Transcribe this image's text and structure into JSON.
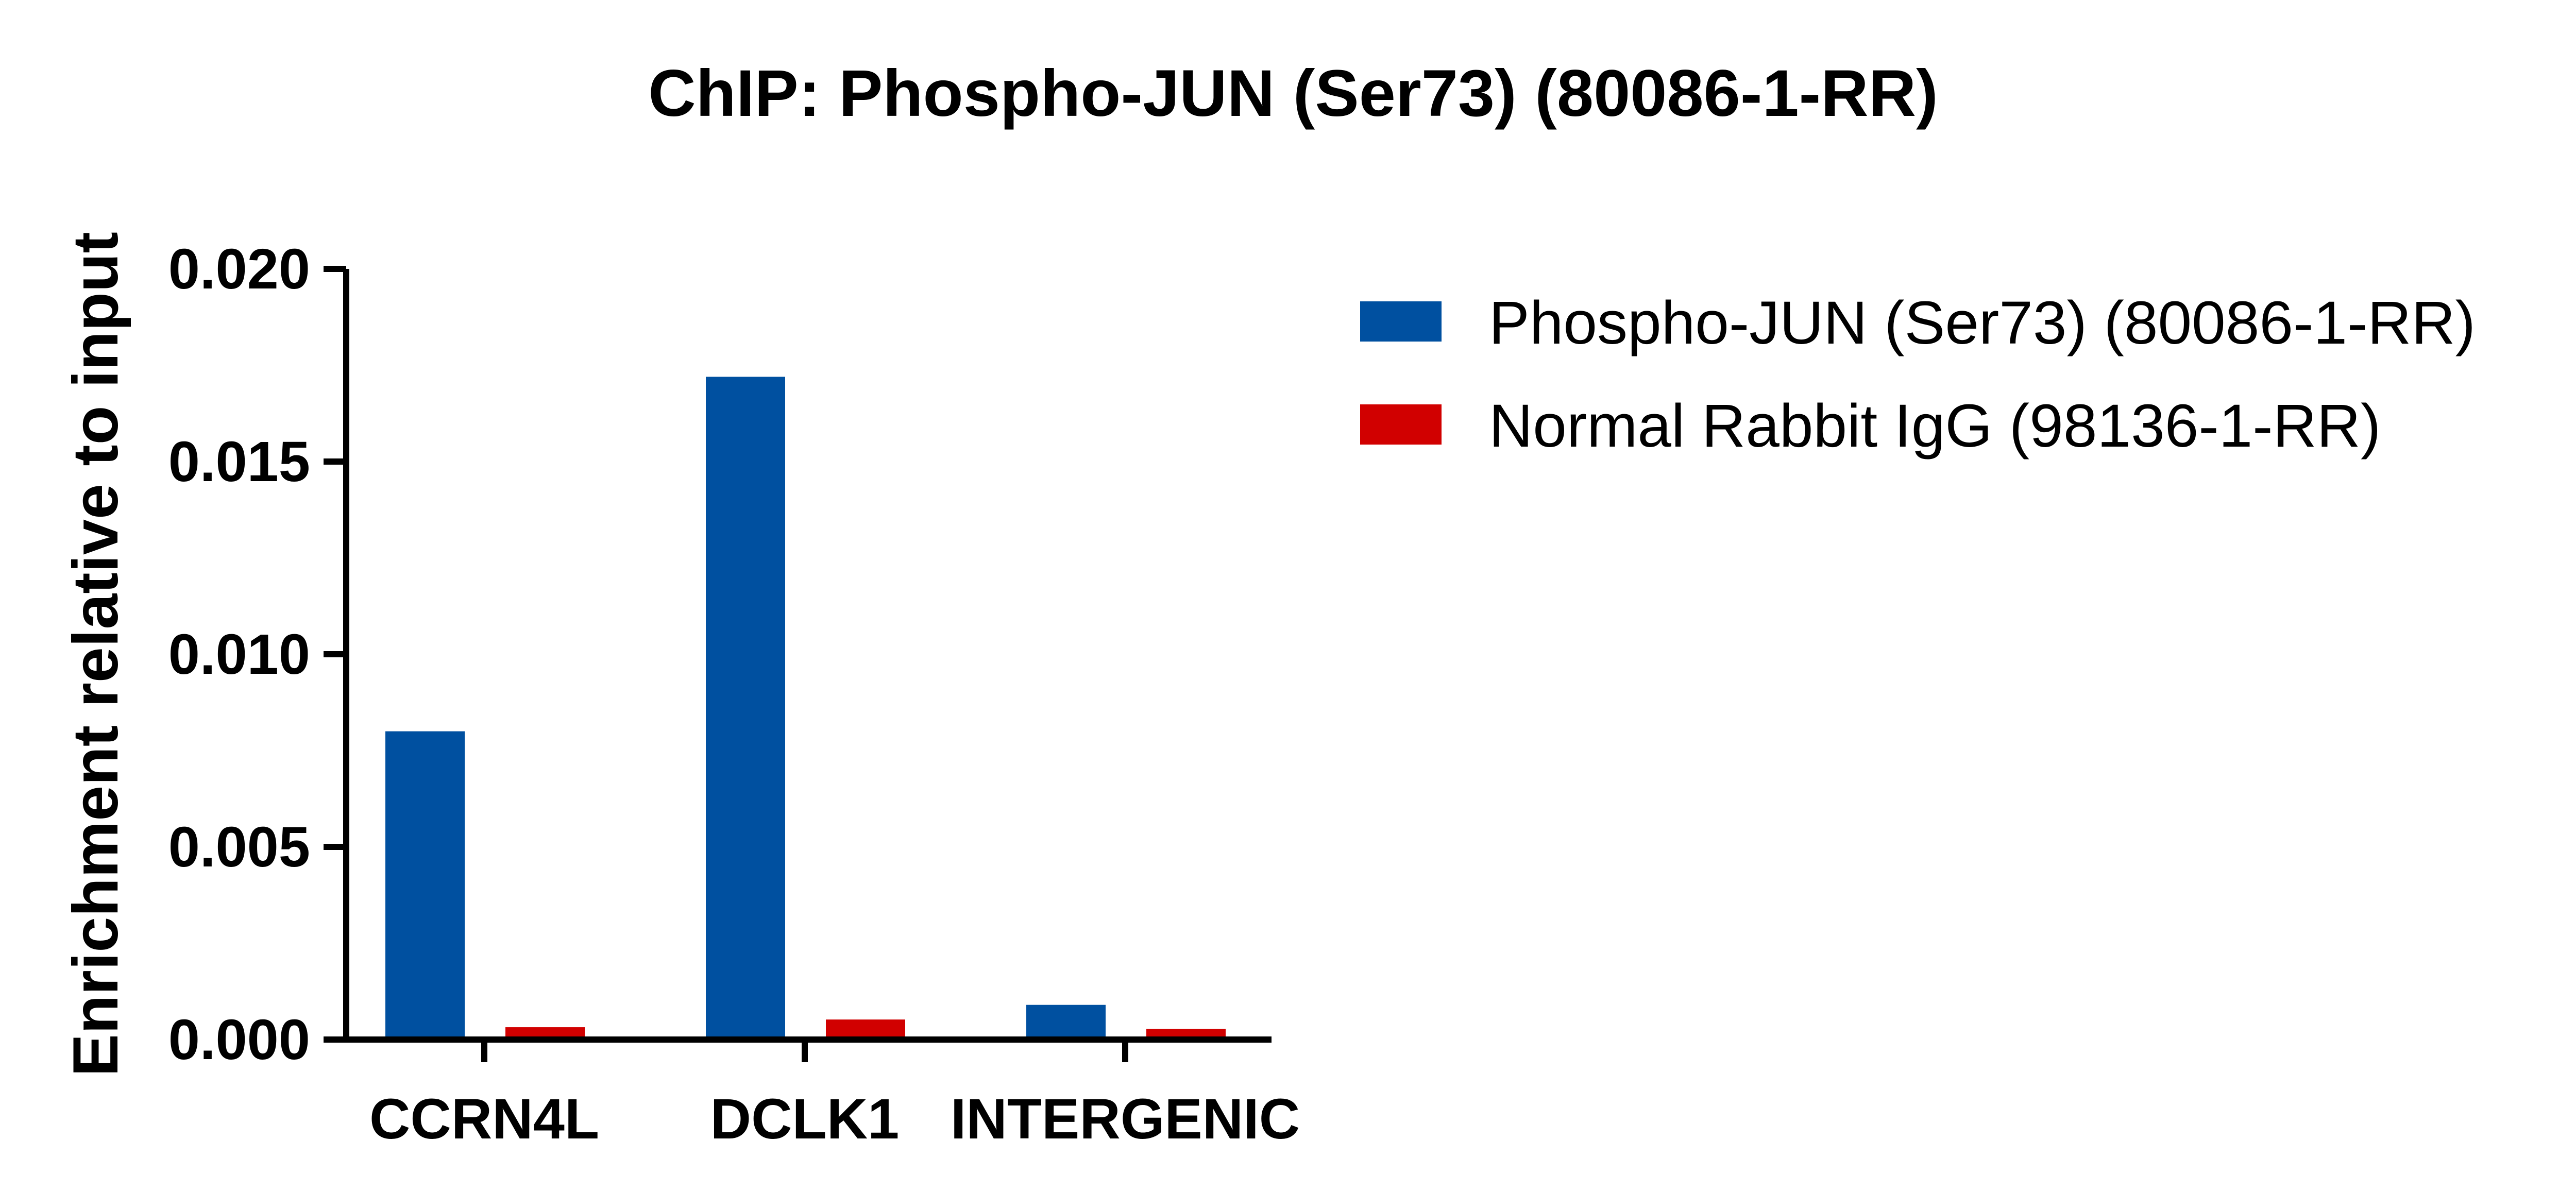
{
  "chart_data": {
    "type": "bar",
    "title": "ChIP: Phospho-JUN (Ser73) (80086-1-RR)",
    "xlabel": "",
    "ylabel": "Enrichment relative to input",
    "ylim": [
      0,
      0.02
    ],
    "yticks": [
      "0.000",
      "0.005",
      "0.010",
      "0.015",
      "0.020"
    ],
    "ytick_values": [
      0,
      0.005,
      0.01,
      0.015,
      0.02
    ],
    "categories": [
      "CCRN4L",
      "DCLK1",
      "INTERGENIC"
    ],
    "series": [
      {
        "name": "Phospho-JUN (Ser73) (80086-1-RR)",
        "color": "#0050A0",
        "values": [
          0.008,
          0.0172,
          0.0009
        ]
      },
      {
        "name": "Normal Rabbit IgG (98136-1-RR)",
        "color": "#D10000",
        "values": [
          0.00032,
          0.00052,
          0.00028
        ]
      }
    ],
    "legend_position": "right",
    "grid": false
  }
}
